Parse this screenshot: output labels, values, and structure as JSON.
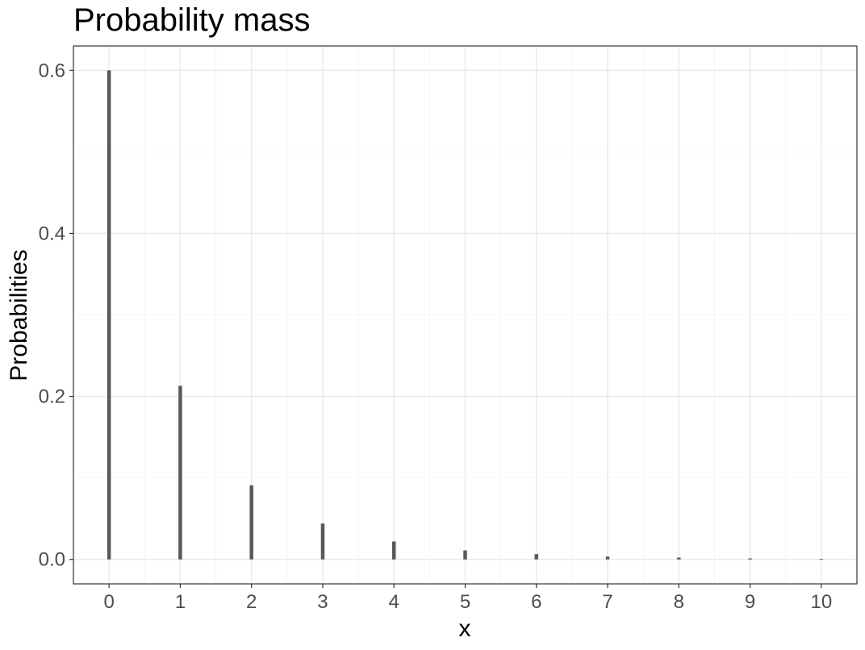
{
  "chart_data": {
    "type": "bar",
    "title": "Probability mass",
    "xlabel": "x",
    "ylabel": "Probabilities",
    "x": [
      0,
      1,
      2,
      3,
      4,
      5,
      6,
      7,
      8,
      9,
      10
    ],
    "values": [
      0.6,
      0.213,
      0.091,
      0.044,
      0.022,
      0.011,
      0.0065,
      0.0035,
      0.0022,
      0.0012,
      0.0006
    ],
    "x_ticks": [
      "0",
      "1",
      "2",
      "3",
      "4",
      "5",
      "6",
      "7",
      "8",
      "9",
      "10"
    ],
    "y_ticks": [
      0.0,
      0.2,
      0.4,
      0.6
    ],
    "y_tick_labels": [
      "0.0",
      "0.2",
      "0.4",
      "0.6"
    ],
    "xlim": [
      -0.5,
      10.5
    ],
    "ylim": [
      -0.03,
      0.63
    ],
    "grid": true,
    "legend": "none",
    "bar_color": "#595959"
  }
}
